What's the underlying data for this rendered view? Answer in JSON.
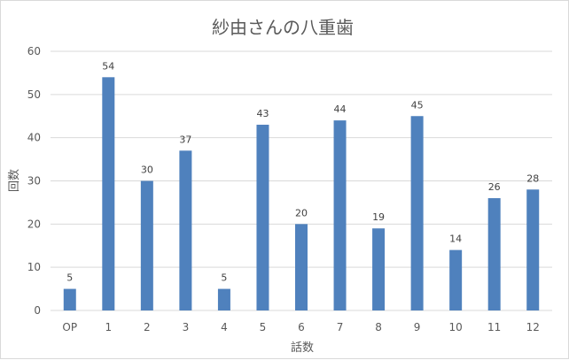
{
  "chart_data": {
    "type": "bar",
    "title": "紗由さんの八重歯",
    "xlabel": "話数",
    "ylabel": "回数",
    "categories": [
      "OP",
      "1",
      "2",
      "3",
      "4",
      "5",
      "6",
      "7",
      "8",
      "9",
      "10",
      "11",
      "12"
    ],
    "values": [
      5,
      54,
      30,
      37,
      5,
      43,
      20,
      44,
      19,
      45,
      14,
      26,
      28
    ],
    "ylim": [
      0,
      60
    ],
    "yticks": [
      "0",
      "10",
      "20",
      "30",
      "40",
      "50",
      "60"
    ],
    "grid": true,
    "legend": "none",
    "bar_color": "#4f81bd",
    "grid_color": "#d9d9d9"
  }
}
